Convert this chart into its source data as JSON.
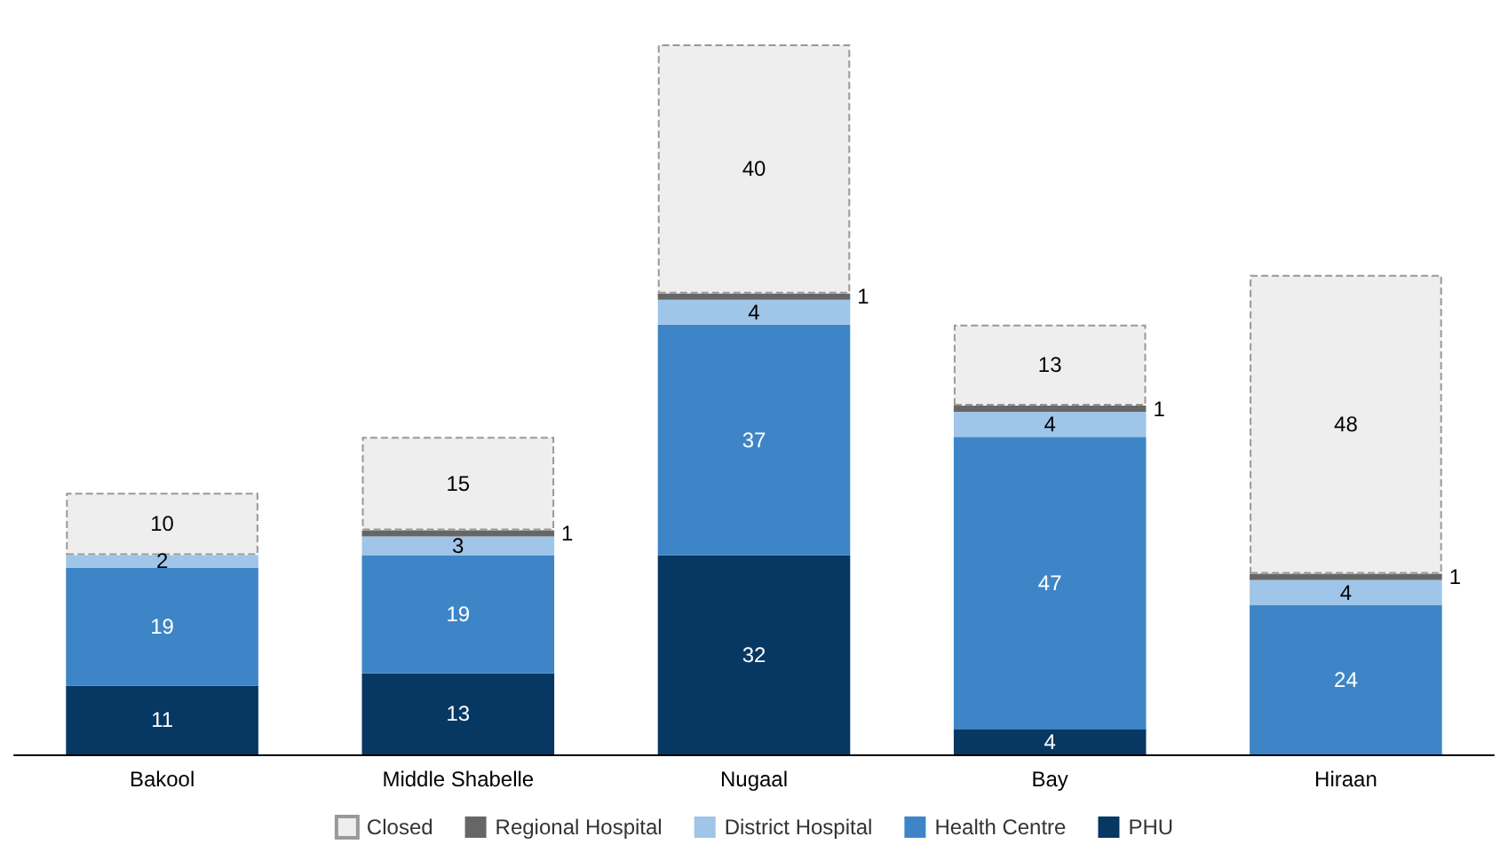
{
  "chart_data": {
    "type": "bar",
    "stacked": true,
    "data_labels": true,
    "legend": "bottom",
    "categories": [
      "Bakool",
      "Middle Shabelle",
      "Nugaal",
      "Bay",
      "Hiraan"
    ],
    "series": [
      {
        "name": "PHU",
        "color": "#073763",
        "values": [
          11,
          13,
          32,
          4,
          null
        ]
      },
      {
        "name": "Health Centre",
        "color": "#3d85c6",
        "values": [
          19,
          19,
          37,
          47,
          24
        ]
      },
      {
        "name": "District Hospital",
        "color": "#9fc5e8",
        "values": [
          2,
          3,
          4,
          4,
          4
        ]
      },
      {
        "name": "Regional Hospital",
        "color": "#666666",
        "values": [
          null,
          1,
          1,
          1,
          1
        ]
      },
      {
        "name": "Closed",
        "color": "#eeeeee",
        "values": [
          10,
          15,
          40,
          13,
          48
        ]
      }
    ]
  }
}
